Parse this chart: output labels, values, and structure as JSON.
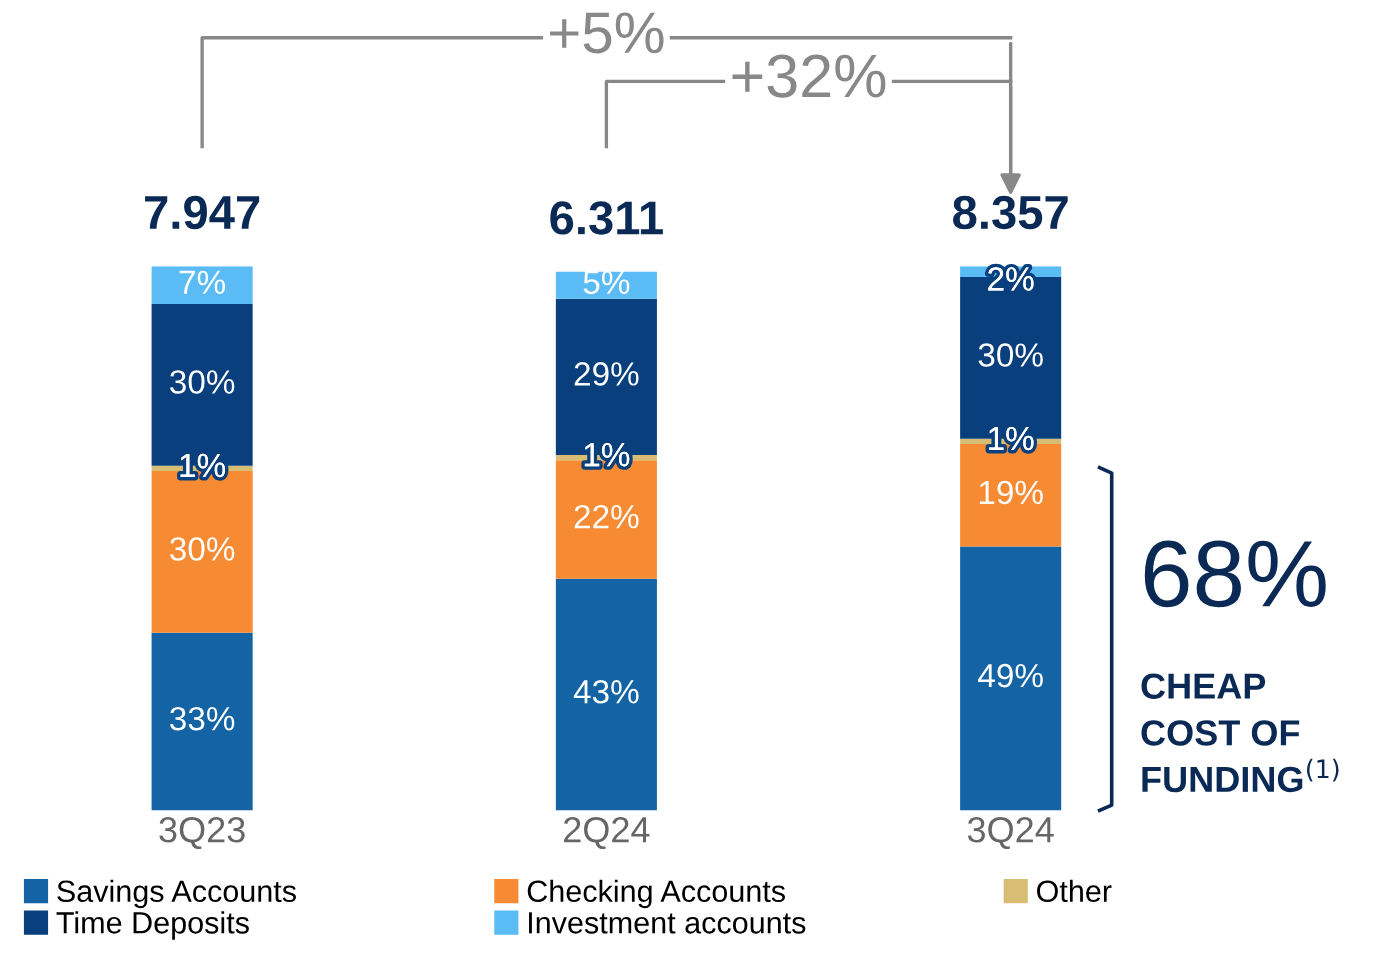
{
  "chart_data": {
    "type": "bar",
    "stacked": true,
    "categories": [
      "3Q23",
      "2Q24",
      "3Q24"
    ],
    "series": [
      {
        "name": "Savings Accounts",
        "color": "#1464a5",
        "values": [
          33,
          43,
          49
        ],
        "value_labels": [
          "33%",
          "43%",
          "49%"
        ]
      },
      {
        "name": "Checking Accounts",
        "color": "#f78b34",
        "values": [
          30,
          22,
          19
        ],
        "value_labels": [
          "30%",
          "22%",
          "19%"
        ]
      },
      {
        "name": "Other",
        "color": "#d8be75",
        "values": [
          1,
          1,
          1
        ],
        "value_labels": [
          "1%",
          "1%",
          "1%"
        ]
      },
      {
        "name": "Time Deposits",
        "color": "#083f7c",
        "values": [
          30,
          29,
          30
        ],
        "value_labels": [
          "30%",
          "29%",
          "30%"
        ]
      },
      {
        "name": "Investment accounts",
        "color": "#5bbcf5",
        "values": [
          7,
          5,
          2
        ],
        "value_labels": [
          "7%",
          "5%",
          "2%"
        ]
      }
    ],
    "annotations": [
      "+5%",
      "+32%",
      "68%",
      "CHEAP\nCOST OF\nFUNDING$^{(1)}$",
      {
        "text": "7.947",
        "x": "3Q23",
        "y": 101
      },
      {
        "text": "6.311",
        "x": "2Q24",
        "y": 100
      },
      {
        "text": "8.357",
        "x": "3Q24",
        "y": 101
      }
    ],
    "legend": "bottom",
    "grid": false
  }
}
